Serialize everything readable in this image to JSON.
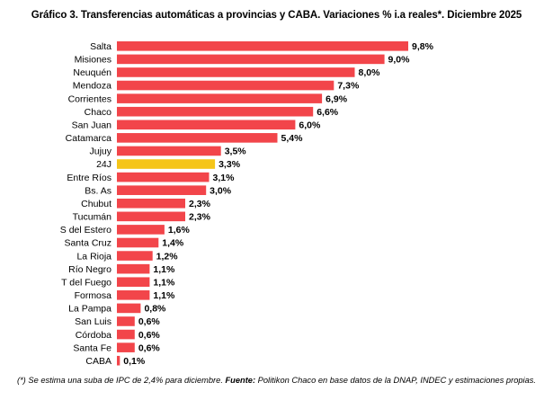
{
  "chart_data": {
    "type": "bar",
    "orientation": "horizontal",
    "title": "Gráfico 3. Transferencias automáticas a provincias y CABA. Variaciones % i.a reales*. Diciembre 2025",
    "categories": [
      "Salta",
      "Misiones",
      "Neuquén",
      "Mendoza",
      "Corrientes",
      "Chaco",
      "San Juan",
      "Catamarca",
      "Jujuy",
      "24J",
      "Entre Ríos",
      "Bs. As",
      "Chubut",
      "Tucumán",
      "S del Estero",
      "Santa Cruz",
      "La Rioja",
      "Río Negro",
      "T del Fuego",
      "Formosa",
      "La Pampa",
      "San Luis",
      "Córdoba",
      "Santa Fe",
      "CABA"
    ],
    "values": [
      9.8,
      9.0,
      8.0,
      7.3,
      6.9,
      6.6,
      6.0,
      5.4,
      3.5,
      3.3,
      3.1,
      3.0,
      2.3,
      2.3,
      1.6,
      1.4,
      1.2,
      1.1,
      1.1,
      1.1,
      0.8,
      0.6,
      0.6,
      0.6,
      0.1
    ],
    "value_labels": [
      "9,8%",
      "9,0%",
      "8,0%",
      "7,3%",
      "6,9%",
      "6,6%",
      "6,0%",
      "5,4%",
      "3,5%",
      "3,3%",
      "3,1%",
      "3,0%",
      "2,3%",
      "2,3%",
      "1,6%",
      "1,4%",
      "1,2%",
      "1,1%",
      "1,1%",
      "1,1%",
      "0,8%",
      "0,6%",
      "0,6%",
      "0,6%",
      "0,1%"
    ],
    "xlim": [
      0,
      10
    ],
    "grid": false,
    "legend": "none",
    "colors": {
      "default": "#f2454a",
      "highlight": "#f5c518"
    },
    "highlight_category": "24J"
  },
  "footnote": {
    "note": "(*) Se estima una suba de IPC de 2,4% para diciembre. ",
    "source_label": "Fuente:",
    "source_text": " Politikon Chaco en base datos de la DNAP, INDEC y estimaciones propias."
  }
}
